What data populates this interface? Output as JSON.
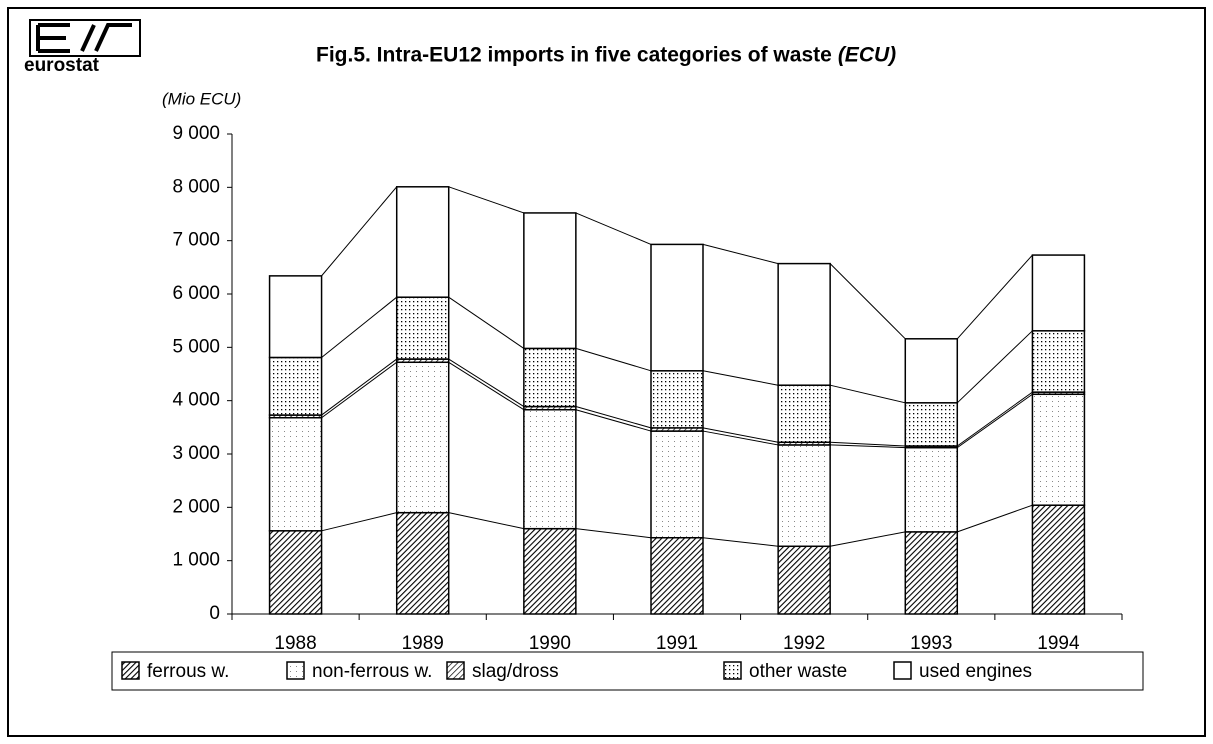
{
  "logo_text": "eurostat",
  "chart_data": {
    "type": "stacked_bar",
    "title": "Fig.5. Intra-EU12 imports in five categories of waste",
    "title_unit": "(ECU)",
    "y_label": "(Mio ECU)",
    "categories": [
      "1988",
      "1989",
      "1990",
      "1991",
      "1992",
      "1993",
      "1994"
    ],
    "series": [
      {
        "name": "ferrous w.",
        "color": "#000000",
        "pattern": "dense-hatch",
        "values": [
          1560,
          1900,
          1600,
          1430,
          1270,
          1540,
          2040
        ]
      },
      {
        "name": "non-ferrous w.",
        "color": "#000000",
        "pattern": "light-dots",
        "values": [
          2120,
          2820,
          2230,
          2000,
          1900,
          1580,
          2080
        ]
      },
      {
        "name": "slag/dross",
        "color": "#000000",
        "pattern": "hatch",
        "values": [
          50,
          60,
          60,
          60,
          50,
          30,
          40
        ]
      },
      {
        "name": "other waste",
        "color": "#000000",
        "pattern": "dots",
        "values": [
          1080,
          1160,
          1090,
          1070,
          1070,
          810,
          1150
        ]
      },
      {
        "name": "used engines",
        "color": "#000000",
        "pattern": "none",
        "values": [
          1530,
          2070,
          2540,
          2370,
          2280,
          1200,
          1420
        ]
      }
    ],
    "ylim": [
      0,
      9000
    ],
    "yticks": [
      0,
      {
        "value": 1000,
        "label": "1 000"
      },
      {
        "value": 2000,
        "label": "2 000"
      },
      {
        "value": 3000,
        "label": "3 000"
      },
      {
        "value": 4000,
        "label": "4 000"
      },
      {
        "value": 5000,
        "label": "5 000"
      },
      {
        "value": 6000,
        "label": "6 000"
      },
      {
        "value": 7000,
        "label": "7 000"
      },
      {
        "value": 8000,
        "label": "8 000"
      },
      {
        "value": 9000,
        "label": "9 000"
      }
    ],
    "grid": false,
    "legend": "bottom"
  }
}
